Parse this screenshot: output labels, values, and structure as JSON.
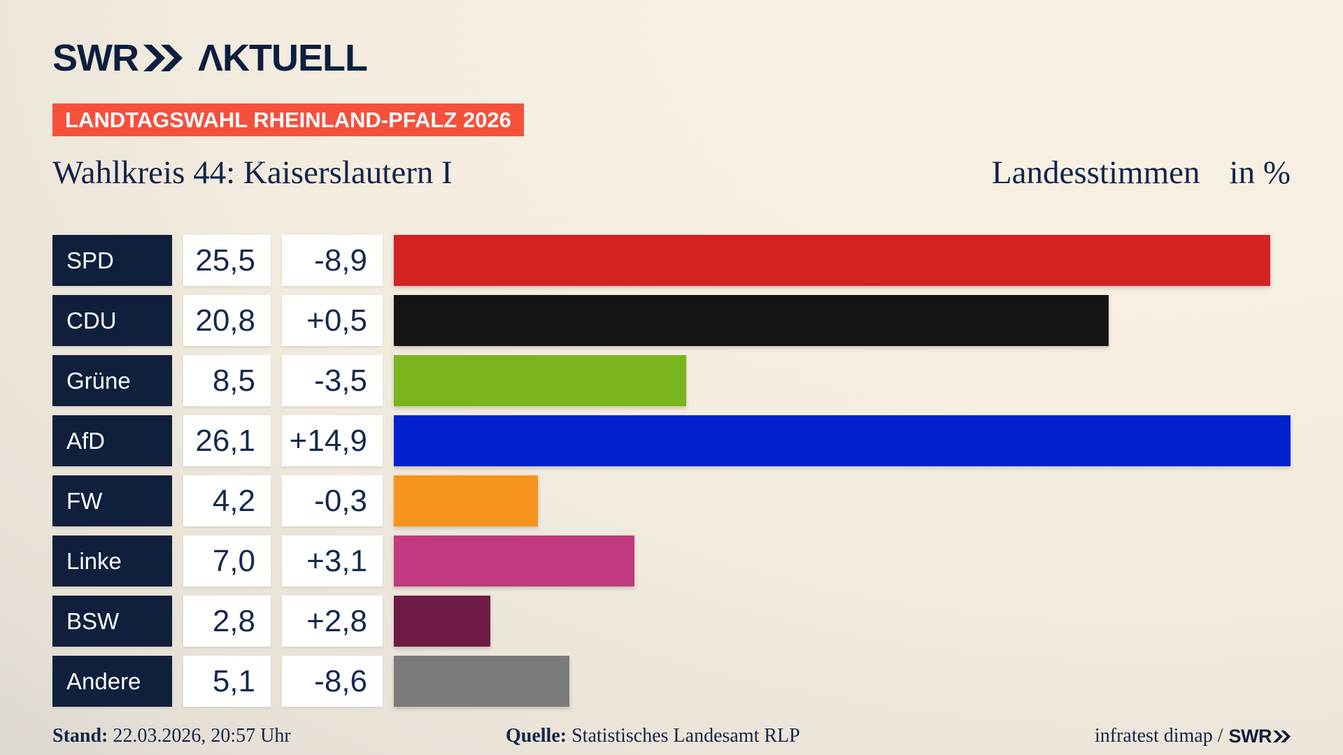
{
  "header": {
    "logo": {
      "brand": "SWR",
      "word": "ΛKTUELL"
    },
    "badge": "LANDTAGSWAHL RHEINLAND-PFALZ 2026"
  },
  "titlebar": {
    "title": "Wahlkreis 44: Kaiserslautern I",
    "measure": "Landesstimmen",
    "unit": "in %"
  },
  "chart_data": {
    "type": "bar",
    "orientation": "horizontal",
    "title": "Wahlkreis 44: Kaiserslautern I",
    "measure": "Landesstimmen",
    "unit": "in %",
    "xlim": [
      0,
      26.1
    ],
    "categories": [
      "SPD",
      "CDU",
      "Grüne",
      "AfD",
      "FW",
      "Linke",
      "BSW",
      "Andere"
    ],
    "values": [
      25.5,
      20.8,
      8.5,
      26.1,
      4.2,
      7.0,
      2.8,
      5.1
    ],
    "changes": [
      -8.9,
      0.5,
      -3.5,
      14.9,
      -0.3,
      3.1,
      2.8,
      -8.6
    ],
    "value_labels": [
      "25,5",
      "20,8",
      "8,5",
      "26,1",
      "4,2",
      "7,0",
      "2,8",
      "5,1"
    ],
    "change_labels": [
      "-8,9",
      "+0,5",
      "-3,5",
      "+14,9",
      "-0,3",
      "+3,1",
      "+2,8",
      "-8,6"
    ],
    "bar_colors": [
      "#d42321",
      "#141414",
      "#7ab51d",
      "#0121cd",
      "#f7941d",
      "#c1397e",
      "#6d1b45",
      "#7b7b7b"
    ]
  },
  "footer": {
    "stand_label": "Stand:",
    "stand_value": "22.03.2026, 20:57 Uhr",
    "quelle_label": "Quelle:",
    "quelle_value": "Statistisches Landesamt RLP",
    "credit_text": "infratest dimap /",
    "credit_brand": "SWR"
  },
  "colors": {
    "navy": "#0f2347",
    "badge_red": "#f4503c",
    "label_box_navy": "#101f3c",
    "box_white": "#ffffff",
    "background_cream": "#f8f1e4",
    "background_gray": "#cfccc6"
  }
}
